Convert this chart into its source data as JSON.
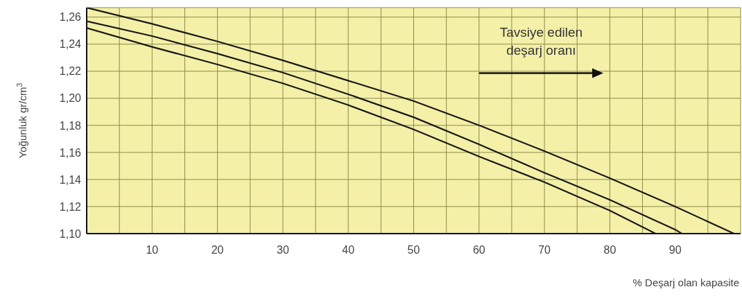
{
  "chart_data": {
    "type": "line",
    "xlabel": "% Deşarj olan kapasite",
    "ylabel": "Yoğunluk gr/cm$^{3}$",
    "annotations": [
      "Tavsiye edilen\ndeşarj oranı"
    ],
    "series": [
      {
        "color": "#1a1a1a",
        "x": [
          0,
          10,
          20,
          30,
          40,
          50,
          60,
          70,
          80,
          90,
          99
        ],
        "values": [
          1.267,
          1.255,
          1.242,
          1.228,
          1.213,
          1.198,
          1.18,
          1.161,
          1.141,
          1.12,
          1.1
        ]
      },
      {
        "color": "#1a1a1a",
        "x": [
          0,
          10,
          20,
          30,
          40,
          50,
          60,
          70,
          80,
          90,
          91
        ],
        "values": [
          1.257,
          1.246,
          1.233,
          1.219,
          1.203,
          1.186,
          1.166,
          1.145,
          1.125,
          1.103,
          1.1
        ]
      },
      {
        "color": "#1a1a1a",
        "x": [
          0,
          10,
          20,
          30,
          40,
          50,
          60,
          70,
          80,
          87
        ],
        "values": [
          1.252,
          1.238,
          1.225,
          1.211,
          1.195,
          1.177,
          1.157,
          1.138,
          1.117,
          1.1
        ]
      }
    ],
    "xlim": [
      0,
      100
    ],
    "xticks": [
      {
        "value": 5,
        "label": null
      },
      10,
      {
        "value": 15,
        "label": null
      },
      20,
      {
        "value": 25,
        "label": null
      },
      30,
      {
        "value": 35,
        "label": null
      },
      40,
      {
        "value": 45,
        "label": null
      },
      50,
      {
        "value": 55,
        "label": null
      },
      60,
      {
        "value": 65,
        "label": null
      },
      70,
      {
        "value": 75,
        "label": null
      },
      80,
      {
        "value": 85,
        "label": null
      },
      90,
      {
        "value": 95,
        "label": null
      }
    ],
    "ylim": [
      1.1,
      1.267
    ],
    "yticks": [
      {
        "value": 1.1,
        "label": "1,10"
      },
      {
        "value": 1.12,
        "label": "1,12"
      },
      {
        "value": 1.14,
        "label": "1,14"
      },
      {
        "value": 1.16,
        "label": "1,16"
      },
      {
        "value": 1.18,
        "label": "1,18"
      },
      {
        "value": 1.2,
        "label": "1,20"
      },
      {
        "value": 1.22,
        "label": "1,22"
      },
      {
        "value": 1.24,
        "label": "1,24"
      },
      {
        "value": 1.26,
        "label": "1,26"
      }
    ],
    "grid": true,
    "marker": "none",
    "line_style": "solid"
  }
}
